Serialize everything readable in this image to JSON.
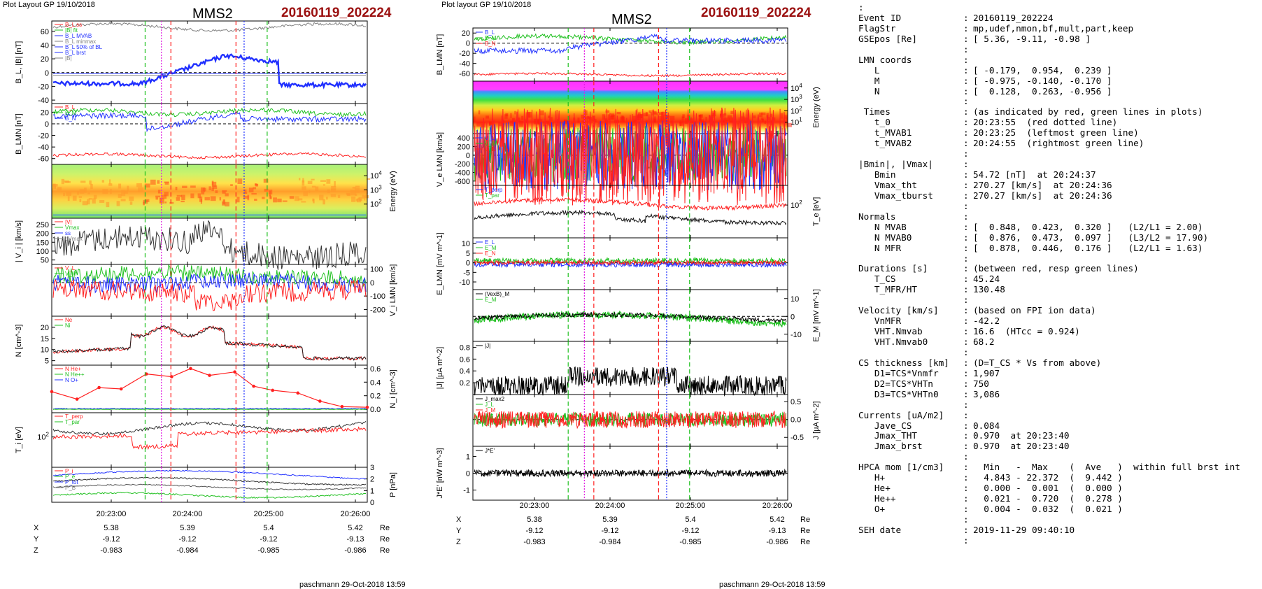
{
  "left_page": {
    "header": "Plot Layout GP 19/10/2018",
    "probe": "MMS2",
    "event": "20160119_202224",
    "footer": "paschmann 29-Oct-2018 13:59",
    "time_ticks": [
      "20:23:00",
      "20:24:00",
      "20:25:00",
      "20:26:00"
    ],
    "ephemeris": {
      "rows": [
        {
          "label": "X",
          "values": [
            "5.38",
            "5.39",
            "5.4",
            "5.42"
          ],
          "unit": "Re"
        },
        {
          "label": "Y",
          "values": [
            "-9.12",
            "-9.12",
            "-9.12",
            "-9.13"
          ],
          "unit": "Re"
        },
        {
          "label": "Z",
          "values": [
            "-0.983",
            "-0.984",
            "-0.985",
            "-0.986"
          ],
          "unit": "Re"
        }
      ]
    }
  },
  "right_page": {
    "header": "Plot layout GP 19/10/2018",
    "probe": "MMS2",
    "event": "20160119_202224",
    "footer": "paschmann 29-Oct-2018 13:59",
    "time_ticks": [
      "20:23:00",
      "20:24:00",
      "20:25:00",
      "20:26:00"
    ],
    "ephemeris": {
      "rows": [
        {
          "label": "X",
          "values": [
            "5.38",
            "5.39",
            "5.4",
            "5.42"
          ],
          "unit": "Re"
        },
        {
          "label": "Y",
          "values": [
            "-9.12",
            "-9.12",
            "-9.12",
            "-9.13"
          ],
          "unit": "Re"
        },
        {
          "label": "Z",
          "values": [
            "-0.983",
            "-0.984",
            "-0.985",
            "-0.986"
          ],
          "unit": "Re"
        }
      ]
    }
  },
  "chart_data": [
    {
      "type": "line",
      "panels": [
        {
          "ylabel": "B_L, |B| [nT]",
          "yticks": [
            "60",
            "40",
            "20",
            "0",
            "-20",
            "-40"
          ],
          "ylim": [
            -45,
            75
          ],
          "legend": [
            "B_L ss",
            "|B| fit",
            "B_L MVAB",
            "B_L minmax",
            "B_L 50% of BL",
            "B_L brst",
            "|B|"
          ]
        },
        {
          "ylabel": "B_LMN [nT]",
          "yticks": [
            "20",
            "0",
            "-20",
            "-40",
            "-60"
          ],
          "ylim": [
            -70,
            35
          ],
          "legend": [
            "B_L",
            "B_M",
            "B_N"
          ]
        },
        {
          "ylabel": "Energy (eV)",
          "yticks": [
            "10^4",
            "10^3",
            "10^2"
          ],
          "type": "spectrogram"
        },
        {
          "ylabel": "| V_i | [km/s]",
          "yticks": [
            "250",
            "200",
            "150",
            "100",
            "50"
          ],
          "ylim": [
            25,
            285
          ],
          "legend": [
            "|V|",
            "Vmax",
            "ss",
            "dVmax"
          ]
        },
        {
          "ylabel": "V_i LMN [km/s]",
          "yticks": [
            "100",
            "0",
            "-100",
            "-200"
          ],
          "ylim": [
            -250,
            135
          ],
          "legend": [
            "V_L",
            "V_M",
            "V_N"
          ]
        },
        {
          "ylabel": "N [cm^-3]",
          "yticks": [
            "20",
            "15",
            "10",
            "5"
          ],
          "ylim": [
            3,
            25
          ],
          "legend": [
            "Ne",
            "Ni"
          ]
        },
        {
          "ylabel": "N_i [cm^-3]",
          "yticks": [
            "0.6",
            "0.4",
            "0.2",
            "0.0"
          ],
          "ylim": [
            -0.05,
            0.65
          ],
          "legend": [
            "N He+",
            "N He++",
            "N O+"
          ]
        },
        {
          "ylabel": "T_i [eV]",
          "yticks": [
            "10^2"
          ],
          "legend": [
            "T_perp",
            "T_par"
          ]
        },
        {
          "ylabel": "P [nPa]",
          "yticks": [
            "3",
            "2",
            "1",
            "0"
          ],
          "ylim": [
            0,
            3
          ],
          "legend": [
            "P_i",
            "P_e",
            "P_tot",
            "P_B"
          ]
        }
      ]
    },
    {
      "type": "line",
      "panels": [
        {
          "ylabel": "B_LMN [nT]",
          "yticks": [
            "20",
            "0",
            "-20",
            "-40",
            "-60"
          ],
          "ylim": [
            -75,
            30
          ],
          "legend": [
            "B_L",
            "B_M",
            "B_N"
          ]
        },
        {
          "ylabel": "Energy (eV)",
          "yticks": [
            "10^4",
            "10^3",
            "10^2",
            "10^1"
          ],
          "type": "spectrogram"
        },
        {
          "ylabel": "V_e LMN [km/s]",
          "yticks": [
            "400",
            "200",
            "0",
            "-200",
            "-400",
            "-600"
          ],
          "ylim": [
            -700,
            500
          ],
          "legend": [
            "V_L",
            "V_M",
            "V_N"
          ]
        },
        {
          "ylabel": "T_e [eV]",
          "yticks": [
            "10^2"
          ],
          "legend": [
            "T_perp",
            "T_par"
          ]
        },
        {
          "ylabel": "E_LMN [mV m^-1]",
          "yticks": [
            "10",
            "5",
            "0",
            "-5",
            "-10"
          ],
          "ylim": [
            -14,
            13
          ],
          "legend": [
            "E_L",
            "E_M",
            "E_N"
          ]
        },
        {
          "ylabel": "E_M [mV m^-1]",
          "yticks": [
            "10",
            "0",
            "-10"
          ],
          "ylim": [
            -14,
            15
          ],
          "legend": [
            "(VexB)_M",
            "E_M"
          ]
        },
        {
          "ylabel": "|J| [μA m^-2]",
          "yticks": [
            "0.8",
            "0.6",
            "0.4",
            "0.2"
          ],
          "ylim": [
            0,
            0.9
          ],
          "legend": [
            "|J|"
          ]
        },
        {
          "ylabel": "J [μA m^-2]",
          "yticks": [
            "0.5",
            "0.0",
            "-0.5"
          ],
          "ylim": [
            -0.75,
            0.7
          ],
          "legend": [
            "J_max2",
            "J_L",
            "J_M"
          ]
        },
        {
          "ylabel": "J*E' [nW m^-3]",
          "yticks": [
            "1",
            "0",
            "-1"
          ],
          "ylim": [
            -1.6,
            1.6
          ],
          "legend": [
            "J*E'"
          ]
        }
      ]
    }
  ],
  "info_panel": {
    "top_mark": ":",
    "rows": [
      [
        "Event ID",
        ":",
        "20160119_202224"
      ],
      [
        "FlagStr",
        ":",
        "mp,udef,nmon,bf,mult,part,keep"
      ],
      [
        "GSEpos [Re]",
        ":",
        "[ 5.36, -9.11, -0.98 ]"
      ],
      [
        "",
        ":",
        ""
      ],
      [
        "LMN coords",
        ":",
        ""
      ],
      [
        "   L",
        ":",
        "[ -0.179,  0.954,  0.239 ]"
      ],
      [
        "   M",
        ":",
        "[ -0.975, -0.140, -0.170 ]"
      ],
      [
        "   N",
        ":",
        "[  0.128,  0.263, -0.956 ]"
      ],
      [
        "",
        ":",
        ""
      ],
      [
        " Times",
        ":",
        "(as indicated by red, green lines in plots)"
      ],
      [
        "   t_0",
        ":",
        "20:23:55  (red dotted line)"
      ],
      [
        "   t_MVAB1",
        ":",
        "20:23:25  (leftmost green line)"
      ],
      [
        "   t_MVAB2",
        ":",
        "20:24:55  (rightmost green line)"
      ],
      [
        "",
        ":",
        ""
      ],
      [
        "|Bmin|, |Vmax|",
        ":",
        ""
      ],
      [
        "   Bmin",
        ":",
        "54.72 [nT]  at 20:24:37"
      ],
      [
        "   Vmax_tht",
        ":",
        "270.27 [km/s]  at 20:24:36"
      ],
      [
        "   Vmax_tburst",
        ":",
        "270.27 [km/s]  at 20:24:36"
      ],
      [
        "",
        ":",
        ""
      ],
      [
        "Normals",
        ":",
        ""
      ],
      [
        "   N MVAB",
        ":",
        "[  0.848,  0.423,  0.320 ]   (L2/L1 = 2.00)"
      ],
      [
        "   N MVAB0",
        ":",
        "[  0.876,  0.473,  0.097 ]   (L3/L2 = 17.90)"
      ],
      [
        "   N MFR",
        ":",
        "[  0.878,  0.446,  0.176 ]   (L2/L1 = 1.63)"
      ],
      [
        "",
        ":",
        ""
      ],
      [
        "Durations [s]",
        ":",
        "(between red, resp green lines)"
      ],
      [
        "   T_CS",
        ":",
        "45.24"
      ],
      [
        "   T_MFR/HT",
        ":",
        "130.48"
      ],
      [
        "",
        ":",
        ""
      ],
      [
        "Velocity [km/s]",
        ":",
        "(based on FPI ion data)"
      ],
      [
        "   VnMFR",
        ":",
        "-42.2"
      ],
      [
        "   VHT.Nmvab",
        ":",
        "16.6  (HTcc = 0.924)"
      ],
      [
        "   VHT.Nmvab0",
        ":",
        "68.2"
      ],
      [
        "",
        ":",
        ""
      ],
      [
        "CS thickness [km]",
        ":",
        "(D=T_CS * Vs from above)"
      ],
      [
        "   D1=TCS*Vnmfr",
        ":",
        "1,907"
      ],
      [
        "   D2=TCS*VHTn",
        ":",
        "750"
      ],
      [
        "   D3=TCS*VHTn0",
        ":",
        "3,086"
      ],
      [
        "",
        ":",
        ""
      ],
      [
        "Currents [uA/m2]",
        ":",
        ""
      ],
      [
        "   Jave_CS",
        ":",
        "0.084"
      ],
      [
        "   Jmax_THT",
        ":",
        "0.970  at 20:23:40"
      ],
      [
        "   Jmax_brst",
        ":",
        "0.970  at 20:23:40"
      ],
      [
        "",
        ":",
        ""
      ],
      [
        "HPCA mom [1/cm3]",
        ":",
        "  Min   -  Max    (  Ave   )  within full brst int"
      ],
      [
        "   H+",
        ":",
        "  4.843 - 22.372  (  9.442 )"
      ],
      [
        "   He+",
        ":",
        "  0.000 -  0.001  (  0.000 )"
      ],
      [
        "   He++",
        ":",
        "  0.021 -  0.720  (  0.278 )"
      ],
      [
        "   O+",
        ":",
        "  0.004 -  0.032  (  0.021 )"
      ],
      [
        "",
        ":",
        ""
      ],
      [
        "SEH date",
        ":",
        "2019-11-29 09:40:10"
      ],
      [
        "",
        ":",
        ""
      ]
    ]
  },
  "colors": {
    "event": "#9b1010",
    "red": "#ff2020",
    "green": "#20c020",
    "blue": "#2030ff",
    "black": "#000000",
    "gray": "#808080",
    "magenta": "#e020e0"
  }
}
